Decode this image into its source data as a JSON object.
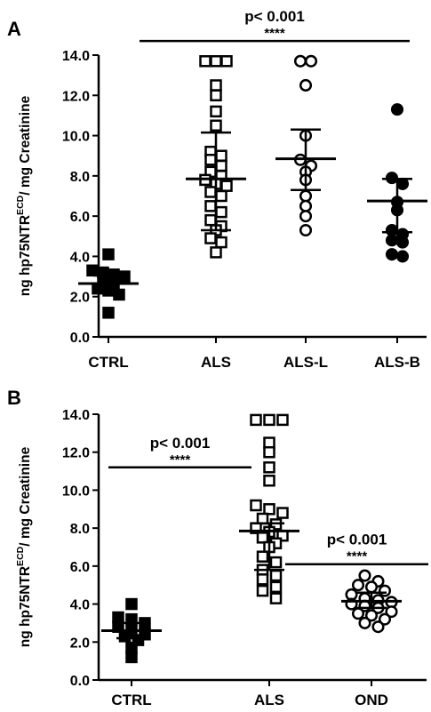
{
  "chart_data": [
    {
      "type": "scatter",
      "panel": "A",
      "ylabel": "ng hp75NTR",
      "ylabel_sup": "ECD",
      "ylabel_tail": "/ mg Creatinine",
      "ylim": [
        0,
        14
      ],
      "yticks": [
        "0.0",
        "2.0",
        "4.0",
        "6.0",
        "8.0",
        "10.0",
        "12.0",
        "14.0"
      ],
      "categories": [
        "CTRL",
        "ALS",
        "ALS-L",
        "ALS-B"
      ],
      "series": [
        {
          "marker": "filled-square",
          "mean": 2.65,
          "sd": [
            2.2,
            3.05
          ],
          "values": [
            4.1,
            3.3,
            3.2,
            3.1,
            3.0,
            2.8,
            2.6,
            2.4,
            2.3,
            2.1,
            1.2
          ]
        },
        {
          "marker": "open-square",
          "mean": 7.85,
          "sd": [
            5.3,
            10.15
          ],
          "values": [
            13.7,
            13.7,
            13.7,
            12.5,
            12.0,
            11.2,
            10.5,
            9.2,
            9.0,
            8.8,
            8.5,
            8.2,
            8.0,
            7.8,
            7.6,
            7.5,
            7.2,
            7.0,
            6.5,
            6.2,
            5.8,
            5.5,
            5.3,
            4.9,
            4.7,
            4.2
          ]
        },
        {
          "marker": "open-circle",
          "mean": 8.85,
          "sd": [
            7.3,
            10.3
          ],
          "values": [
            13.7,
            13.7,
            12.5,
            10.0,
            8.8,
            8.5,
            8.2,
            7.8,
            7.0,
            6.5,
            6.0,
            5.3
          ]
        },
        {
          "marker": "filled-circle",
          "mean": 6.75,
          "sd": [
            5.2,
            7.85
          ],
          "values": [
            11.3,
            7.9,
            7.6,
            6.7,
            6.3,
            5.3,
            5.1,
            4.8,
            4.7,
            4.1,
            4.0
          ]
        }
      ],
      "significance": [
        {
          "from": "CTRL",
          "to": "ALS-B",
          "y": 14.7,
          "label": "p< 0.001",
          "stars": "****"
        }
      ]
    },
    {
      "type": "scatter",
      "panel": "B",
      "ylabel": "ng hp75NTR",
      "ylabel_sup": "ECD",
      "ylabel_tail": "/ mg Creatinine",
      "ylim": [
        0,
        14
      ],
      "yticks": [
        "0.0",
        "2.0",
        "4.0",
        "6.0",
        "8.0",
        "10.0",
        "12.0",
        "14.0"
      ],
      "categories": [
        "CTRL",
        "ALS",
        "OND"
      ],
      "series": [
        {
          "marker": "filled-square",
          "mean": 2.6,
          "sd": [
            2.2,
            3.0
          ],
          "values": [
            4.0,
            3.3,
            3.2,
            3.0,
            2.8,
            2.6,
            2.4,
            2.3,
            2.1,
            1.7,
            1.2
          ]
        },
        {
          "marker": "open-square",
          "mean": 7.85,
          "sd": [
            5.8,
            8.25
          ],
          "values": [
            13.7,
            13.7,
            13.7,
            12.5,
            12.0,
            11.2,
            10.5,
            9.2,
            9.0,
            8.8,
            8.5,
            8.2,
            8.0,
            7.8,
            7.6,
            7.5,
            7.2,
            7.0,
            6.5,
            6.2,
            5.8,
            5.5,
            5.3,
            4.9,
            4.7,
            4.3
          ]
        },
        {
          "marker": "open-circle",
          "mean": 4.15,
          "sd": [
            3.8,
            4.6
          ],
          "values": [
            5.5,
            5.2,
            5.0,
            4.9,
            4.7,
            4.5,
            4.3,
            4.2,
            4.1,
            4.0,
            3.9,
            3.8,
            3.6,
            3.5,
            3.4,
            3.2,
            3.0,
            2.8
          ]
        }
      ],
      "significance": [
        {
          "from": "CTRL",
          "to": "ALS",
          "y": 11.2,
          "label": "p< 0.001",
          "stars": "****"
        },
        {
          "from": "ALS",
          "to": "OND",
          "y": 6.1,
          "label": "p< 0.001",
          "stars": "****"
        }
      ]
    }
  ]
}
